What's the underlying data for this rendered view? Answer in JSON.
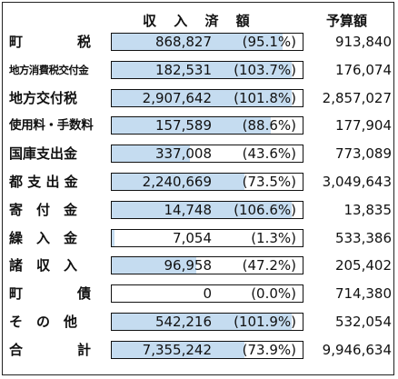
{
  "chart_data": {
    "type": "table",
    "columns": {
      "received": "収 入 済 額",
      "budget": "予算額"
    },
    "rows": [
      {
        "label": "町　　　　税",
        "received": 868827,
        "received_text": "868,827",
        "rate_text": "(95.1%)",
        "rate": 95.1,
        "budget_text": "913,840"
      },
      {
        "label": "地方消費税交付金",
        "received": 182531,
        "received_text": "182,531",
        "rate_text": "(103.7%)",
        "rate": 103.7,
        "budget_text": "176,074"
      },
      {
        "label": "地方交付税",
        "received": 2907642,
        "received_text": "2,907,642",
        "rate_text": "(101.8%)",
        "rate": 101.8,
        "budget_text": "2,857,027"
      },
      {
        "label": "使用料・手数料",
        "received": 157589,
        "received_text": "157,589",
        "rate_text": "(88.6%)",
        "rate": 88.6,
        "budget_text": "177,904"
      },
      {
        "label": "国庫支出金",
        "received": 337008,
        "received_text": "337,008",
        "rate_text": "(43.6%)",
        "rate": 43.6,
        "budget_text": "773,089"
      },
      {
        "label": "都 支 出 金",
        "received": 2240669,
        "received_text": "2,240,669",
        "rate_text": "(73.5%)",
        "rate": 73.5,
        "budget_text": "3,049,643"
      },
      {
        "label": "寄　付　金",
        "received": 14748,
        "received_text": "14,748",
        "rate_text": "(106.6%)",
        "rate": 106.6,
        "budget_text": "13,835"
      },
      {
        "label": "繰　入　金",
        "received": 7054,
        "received_text": "7,054",
        "rate_text": "(1.3%)",
        "rate": 1.3,
        "budget_text": "533,386"
      },
      {
        "label": "諸　収　入",
        "received": 96958,
        "received_text": "96,958",
        "rate_text": "(47.2%)",
        "rate": 47.2,
        "budget_text": "205,402"
      },
      {
        "label": "町　　　　債",
        "received": 0,
        "received_text": "0",
        "rate_text": "(0.0%)",
        "rate": 0.0,
        "budget_text": "714,380"
      },
      {
        "label": "そ　の　他",
        "received": 542216,
        "received_text": "542,216",
        "rate_text": "(101.9%)",
        "rate": 101.9,
        "budget_text": "532,054"
      },
      {
        "label": "合　　　　計",
        "received": 7355242,
        "received_text": "7,355,242",
        "rate_text": "(73.9%)",
        "rate": 73.9,
        "budget_text": "9,946,634"
      }
    ],
    "colors": {
      "fill": "#c5dcf0",
      "border": "#111111"
    }
  }
}
